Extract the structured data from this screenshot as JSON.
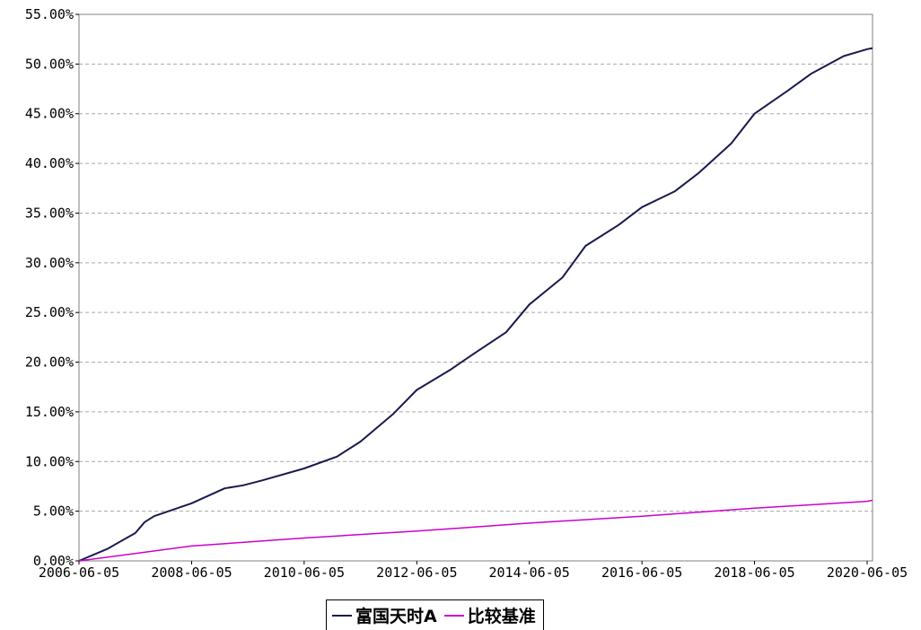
{
  "chart_data": {
    "type": "line",
    "title": "",
    "xlabel": "",
    "ylabel": "",
    "x_ticks": [
      "2006-06-05",
      "2008-06-05",
      "2010-06-05",
      "2012-06-05",
      "2014-06-05",
      "2016-06-05",
      "2018-06-05",
      "2020-06-05"
    ],
    "y_ticks": [
      "0.00%",
      "5.00%",
      "10.00%",
      "15.00%",
      "20.00%",
      "25.00%",
      "30.00%",
      "35.00%",
      "40.00%",
      "45.00%",
      "50.00%",
      "55.00%"
    ],
    "xlim": [
      "2006-06-05",
      "2020-07-10"
    ],
    "ylim": [
      0,
      55
    ],
    "grid": "horizontal",
    "legend_position": "bottom-center",
    "series": [
      {
        "name": "富国天时A",
        "color": "#1a1a4e",
        "x": [
          "2006-06-05",
          "2006-12-05",
          "2007-06-05",
          "2007-08-05",
          "2007-10-05",
          "2008-06-05",
          "2009-01-05",
          "2009-05-05",
          "2009-09-05",
          "2010-06-05",
          "2011-01-05",
          "2011-06-05",
          "2012-01-05",
          "2012-06-05",
          "2013-01-05",
          "2013-06-05",
          "2014-01-05",
          "2014-06-05",
          "2015-01-05",
          "2015-06-05",
          "2016-01-05",
          "2016-06-05",
          "2017-01-05",
          "2017-06-05",
          "2018-01-05",
          "2018-06-05",
          "2019-01-05",
          "2019-06-05",
          "2020-01-05",
          "2020-06-05",
          "2020-07-10"
        ],
        "values": [
          0.0,
          1.2,
          2.8,
          3.9,
          4.5,
          5.8,
          7.3,
          7.6,
          8.1,
          9.3,
          10.5,
          12.0,
          14.8,
          17.2,
          19.2,
          20.8,
          23.0,
          25.8,
          28.5,
          31.7,
          33.8,
          35.6,
          37.2,
          39.0,
          42.0,
          45.0,
          47.3,
          49.0,
          50.8,
          51.5,
          51.6
        ]
      },
      {
        "name": "比较基准",
        "color": "#cc00cc",
        "x": [
          "2006-06-05",
          "2008-06-05",
          "2010-06-05",
          "2012-06-05",
          "2014-06-05",
          "2016-06-05",
          "2018-06-05",
          "2020-06-05",
          "2020-07-10"
        ],
        "values": [
          0.0,
          1.5,
          2.3,
          3.0,
          3.8,
          4.5,
          5.3,
          6.0,
          6.1
        ]
      }
    ]
  }
}
